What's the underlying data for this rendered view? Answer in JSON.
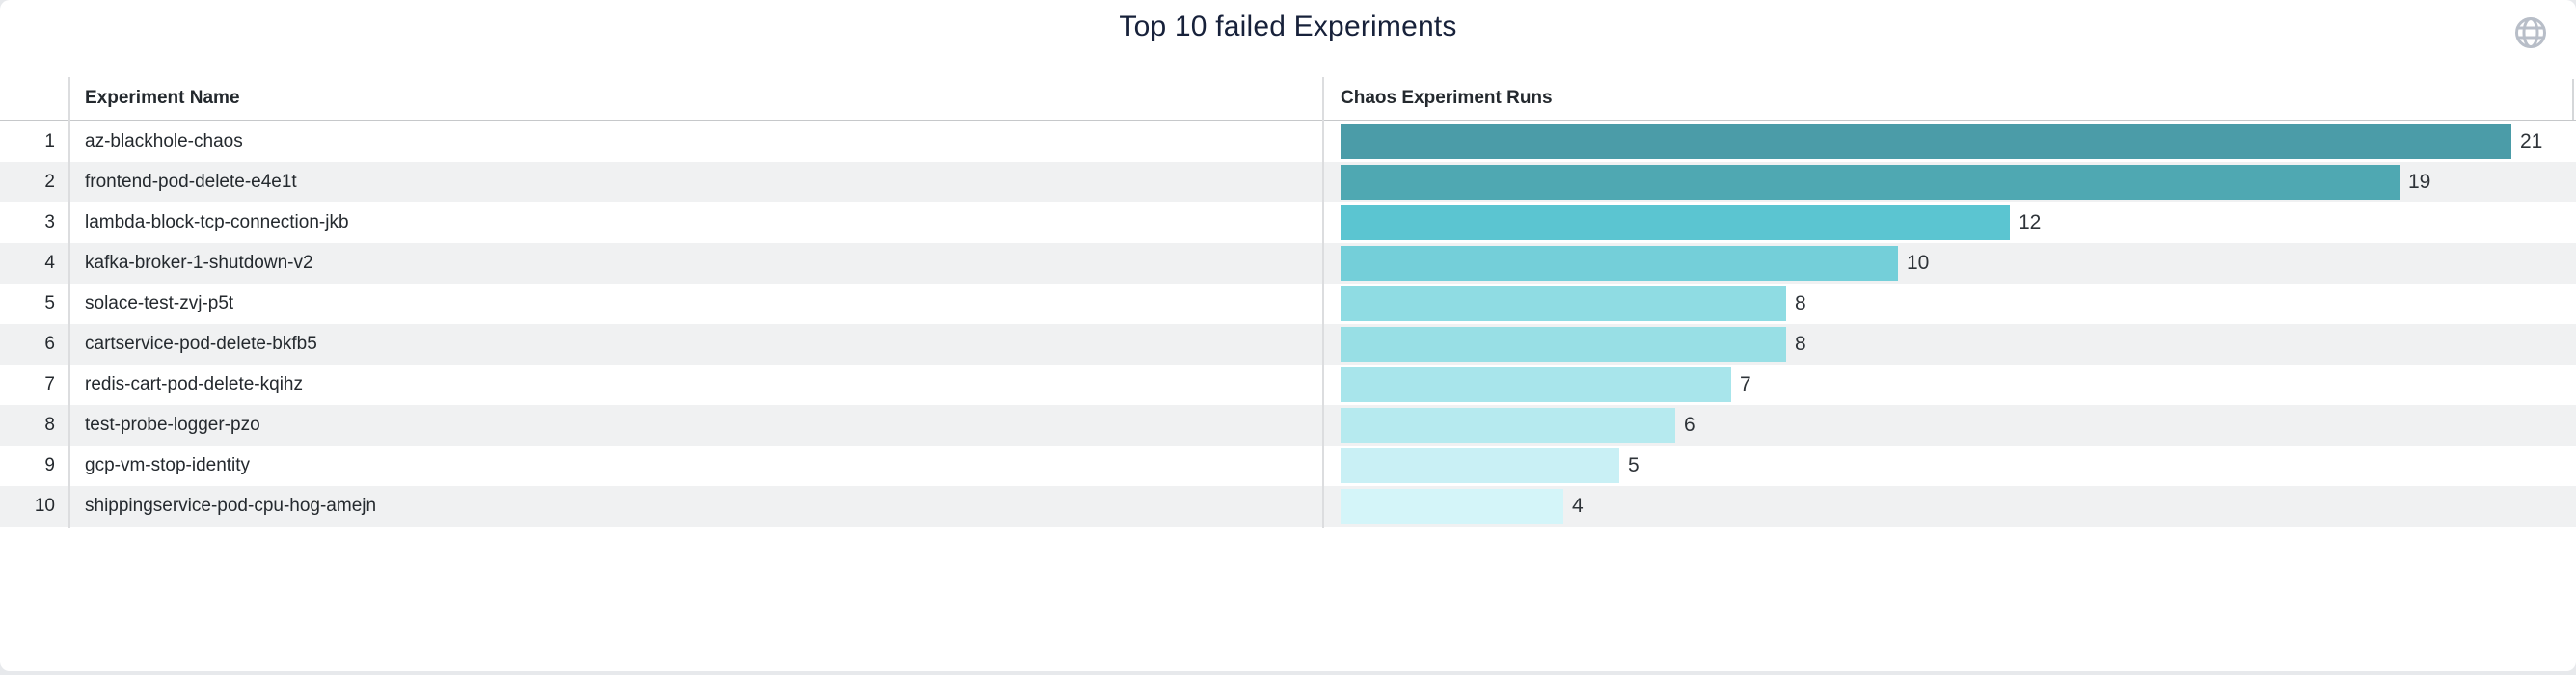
{
  "panel": {
    "title": "Top 10 failed Experiments",
    "icons": {
      "globe": "globe-icon",
      "collapse": "chevron-down-icon"
    },
    "colors": {
      "title_text": "#17213a",
      "header_text": "#24292e",
      "row_text": "#24292e",
      "value_text": "#2e3338",
      "stripe": "#f0f1f2",
      "divider": "#dcdddf",
      "globe_icon": "#b8bec8",
      "chevron_icon": "#242b36"
    }
  },
  "table": {
    "columns": {
      "name": "Experiment Name",
      "runs": "Chaos Experiment Runs"
    },
    "rows": [
      {
        "n": "1",
        "name": "az-blackhole-chaos",
        "runs": 21,
        "color": "#4B9CA8"
      },
      {
        "n": "2",
        "name": "frontend-pod-delete-e4e1t",
        "runs": 19,
        "color": "#4FA8B2"
      },
      {
        "n": "3",
        "name": "lambda-block-tcp-connection-jkb",
        "runs": 12,
        "color": "#5BC5D1"
      },
      {
        "n": "4",
        "name": "kafka-broker-1-shutdown-v2",
        "runs": 10,
        "color": "#74CFD9"
      },
      {
        "n": "5",
        "name": "solace-test-zvj-p5t",
        "runs": 8,
        "color": "#8FDCE3"
      },
      {
        "n": "6",
        "name": "cartservice-pod-delete-bkfb5",
        "runs": 8,
        "color": "#98DFE5"
      },
      {
        "n": "7",
        "name": "redis-cart-pod-delete-kqihz",
        "runs": 7,
        "color": "#A8E5EB"
      },
      {
        "n": "8",
        "name": "test-probe-logger-pzo",
        "runs": 6,
        "color": "#B6EAEF"
      },
      {
        "n": "9",
        "name": "gcp-vm-stop-identity",
        "runs": 5,
        "color": "#C9F0F5"
      },
      {
        "n": "10",
        "name": "shippingservice-pod-cpu-hog-amejn",
        "runs": 4,
        "color": "#D4F5F9"
      }
    ]
  },
  "chart_data": {
    "type": "bar",
    "orientation": "horizontal",
    "title": "Top 10 failed Experiments",
    "categories": [
      "az-blackhole-chaos",
      "frontend-pod-delete-e4e1t",
      "lambda-block-tcp-connection-jkb",
      "kafka-broker-1-shutdown-v2",
      "solace-test-zvj-p5t",
      "cartservice-pod-delete-bkfb5",
      "redis-cart-pod-delete-kqihz",
      "test-probe-logger-pzo",
      "gcp-vm-stop-identity",
      "shippingservice-pod-cpu-hog-amejn"
    ],
    "values": [
      21,
      19,
      12,
      10,
      8,
      8,
      7,
      6,
      5,
      4
    ],
    "xlabel": "Chaos Experiment Runs",
    "ylabel": "Experiment Name",
    "xlim": [
      0,
      21
    ],
    "grid": false,
    "legend": false,
    "bar_colors": [
      "#4B9CA8",
      "#4FA8B2",
      "#5BC5D1",
      "#74CFD9",
      "#8FDCE3",
      "#98DFE5",
      "#A8E5EB",
      "#B6EAEF",
      "#C9F0F5",
      "#D4F5F9"
    ]
  }
}
